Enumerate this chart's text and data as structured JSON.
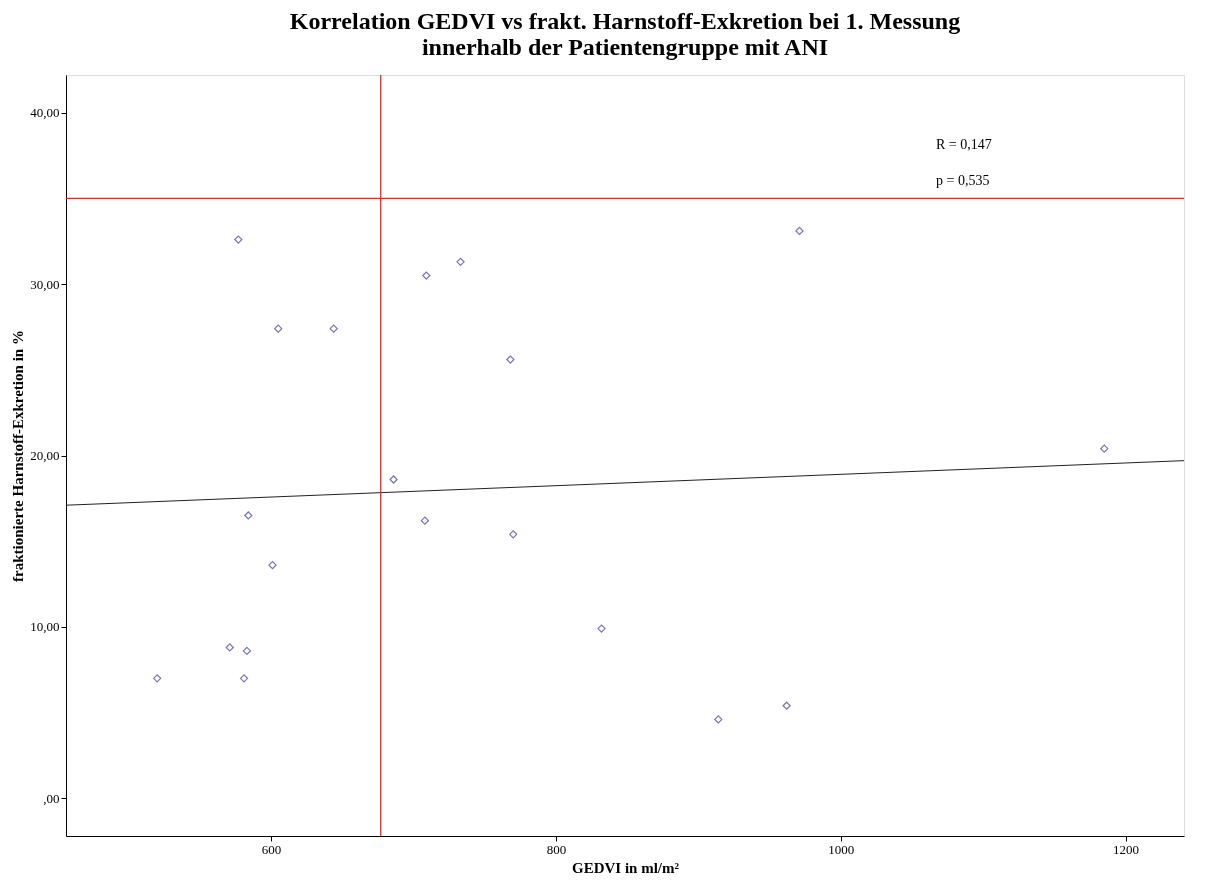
{
  "chart_data": {
    "type": "scatter",
    "title": "Korrelation GEDVI vs frakt. Harnstoff-Exkretion bei 1. Messung",
    "subtitle": "innerhalb der Patientengruppe mit ANI",
    "xlabel": "GEDVI in ml/m²",
    "ylabel": "fraktionierte Harnstoff-Exkretion in %",
    "xlim": [
      456,
      1241
    ],
    "ylim": [
      -2.2,
      42.2
    ],
    "xticks": [
      600,
      800,
      1000,
      1200
    ],
    "yticks": [
      {
        "value": 0,
        "label": ",00"
      },
      {
        "value": 10,
        "label": "10,00"
      },
      {
        "value": 20,
        "label": "20,00"
      },
      {
        "value": 30,
        "label": "30,00"
      },
      {
        "value": 40,
        "label": "40,00"
      }
    ],
    "grid": false,
    "series": [
      {
        "color": "#3d3d99",
        "marker": "diamond",
        "x": [
          520,
          571,
          583,
          581,
          577,
          584,
          601,
          605,
          644,
          686,
          709,
          708,
          733,
          768,
          770,
          832,
          914,
          962,
          971,
          1185
        ],
        "values": [
          7.0,
          8.8,
          8.6,
          7.0,
          32.6,
          16.5,
          13.6,
          27.4,
          27.4,
          18.6,
          30.5,
          16.2,
          31.3,
          25.6,
          15.4,
          9.9,
          4.6,
          5.4,
          33.1,
          20.4
        ]
      },
      {
        "type": "line",
        "color": "#222222",
        "marker": "none",
        "line_style": "solid",
        "x": [
          456,
          1241
        ],
        "values": [
          17.1,
          19.7
        ]
      }
    ],
    "ref_lines": [
      {
        "axis": "x",
        "value": 677,
        "color": "#cc3333"
      },
      {
        "axis": "y",
        "value": 35,
        "color": "#cc3333"
      }
    ],
    "annotations": [
      "R = 0,147",
      "p = 0,535"
    ]
  }
}
